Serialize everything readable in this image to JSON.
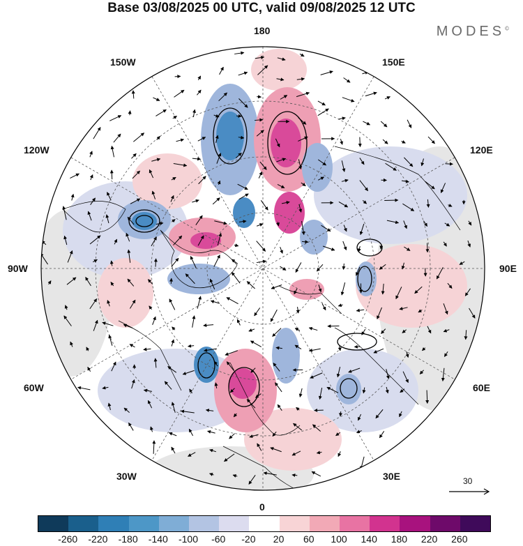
{
  "title": "Base 03/08/2025 00 UTC, valid 09/08/2025 12 UTC",
  "brand": {
    "name": "MODES",
    "mark": "©"
  },
  "longitude_labels": {
    "top": "180",
    "top_left": "150W",
    "top_right": "150E",
    "upper_left": "120W",
    "upper_right": "120E",
    "left": "90W",
    "right": "90E",
    "lower_left": "60W",
    "lower_right": "60E",
    "bottom_left": "30W",
    "bottom_right": "30E",
    "bottom": "0"
  },
  "reference_vector": {
    "value": "30"
  },
  "colorbar": {
    "ticks": [
      "-260",
      "-220",
      "-180",
      "-140",
      "-100",
      "-60",
      "-20",
      "20",
      "60",
      "100",
      "140",
      "180",
      "220",
      "260"
    ],
    "colors": [
      "#0f3a5a",
      "#1a5f8c",
      "#2f7fb6",
      "#4d97c7",
      "#7fadd6",
      "#b3c4e3",
      "#dcdcef",
      "#ffffff",
      "#f8d4d6",
      "#f2a9b6",
      "#e873a3",
      "#d2338f",
      "#a8127e",
      "#6e0a6a",
      "#3f0a5a"
    ]
  },
  "map": {
    "anomaly_colors": {
      "weak_blue": "#d8dcee",
      "mid_blue": "#9fb6dc",
      "strong_blue": "#4a8cc4",
      "weak_red": "#f6d3d6",
      "mid_red": "#ee9fb4",
      "strong_red": "#d94a9a",
      "neutral_gray": "#e2e2e2",
      "land": "#000000"
    },
    "anomalies": [
      {
        "name": "blue-low-180-north",
        "kind": "weak_blue",
        "core": "strong_blue"
      },
      {
        "name": "red-high-180-east",
        "kind": "weak_red",
        "core": "strong_red"
      },
      {
        "name": "red-high-europe",
        "kind": "weak_red",
        "core": "strong_red"
      },
      {
        "name": "blue-low-canada-west",
        "kind": "weak_blue",
        "core": "strong_blue"
      },
      {
        "name": "red-high-canada",
        "kind": "weak_red",
        "core": "strong_red"
      }
    ]
  }
}
